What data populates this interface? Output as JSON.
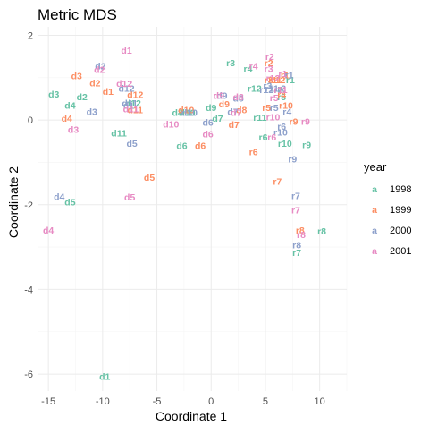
{
  "chart_data": {
    "type": "scatter",
    "title": "Metric MDS",
    "xlabel": "Coordinate 1",
    "ylabel": "Coordinate 2",
    "xlim": [
      -16,
      12.5
    ],
    "ylim": [
      -6.4,
      2.2
    ],
    "xticks": [
      -15,
      -10,
      -5,
      0,
      5,
      10
    ],
    "yticks": [
      -6,
      -4,
      -2,
      0,
      2
    ],
    "grid": true,
    "legend": {
      "title": "year",
      "placement": "right"
    },
    "series": [
      {
        "name": "1998",
        "color": "#66c2a5",
        "points": [
          {
            "label": "d1",
            "x": -9.8,
            "y": -6.05
          },
          {
            "label": "d2",
            "x": -11.9,
            "y": 0.55
          },
          {
            "label": "d3",
            "x": -14.5,
            "y": 0.62
          },
          {
            "label": "d4",
            "x": -13.0,
            "y": 0.35
          },
          {
            "label": "d5",
            "x": -13.0,
            "y": -1.93
          },
          {
            "label": "d6",
            "x": -2.7,
            "y": -0.6
          },
          {
            "label": "d7",
            "x": 0.6,
            "y": 0.05
          },
          {
            "label": "d8",
            "x": -3.1,
            "y": 0.18
          },
          {
            "label": "d9",
            "x": 0.0,
            "y": 0.3
          },
          {
            "label": "d10",
            "x": -2.2,
            "y": 0.18
          },
          {
            "label": "d11",
            "x": -8.5,
            "y": -0.3
          },
          {
            "label": "d12",
            "x": -7.2,
            "y": 0.4
          },
          {
            "label": "r1",
            "x": 7.3,
            "y": 0.95
          },
          {
            "label": "r2",
            "x": 6.2,
            "y": 0.72
          },
          {
            "label": "r3",
            "x": 1.8,
            "y": 1.35
          },
          {
            "label": "r4",
            "x": 3.4,
            "y": 1.22
          },
          {
            "label": "r5",
            "x": 6.5,
            "y": 0.55
          },
          {
            "label": "r6",
            "x": 4.8,
            "y": -0.4
          },
          {
            "label": "r7",
            "x": 7.9,
            "y": -3.13
          },
          {
            "label": "r8",
            "x": 10.2,
            "y": -2.62
          },
          {
            "label": "r9",
            "x": 8.8,
            "y": -0.58
          },
          {
            "label": "r10",
            "x": 6.8,
            "y": -0.55
          },
          {
            "label": "r11",
            "x": 4.5,
            "y": 0.07
          },
          {
            "label": "r12",
            "x": 4.0,
            "y": 0.75
          }
        ]
      },
      {
        "name": "1999",
        "color": "#fc8d62",
        "points": [
          {
            "label": "d1",
            "x": -9.5,
            "y": 0.68
          },
          {
            "label": "d2",
            "x": -10.7,
            "y": 0.88
          },
          {
            "label": "d3",
            "x": -12.4,
            "y": 1.05
          },
          {
            "label": "d4",
            "x": -13.3,
            "y": 0.05
          },
          {
            "label": "d5",
            "x": -5.7,
            "y": -1.35
          },
          {
            "label": "d6",
            "x": -1.0,
            "y": -0.6
          },
          {
            "label": "d7",
            "x": 2.1,
            "y": -0.1
          },
          {
            "label": "d8",
            "x": 2.8,
            "y": 0.25
          },
          {
            "label": "d9",
            "x": 1.2,
            "y": 0.38
          },
          {
            "label": "d10",
            "x": -2.3,
            "y": 0.25
          },
          {
            "label": "d11",
            "x": -7.0,
            "y": 0.25
          },
          {
            "label": "d12",
            "x": -7.0,
            "y": 0.6
          },
          {
            "label": "r1",
            "x": 6.8,
            "y": 1.07
          },
          {
            "label": "r2",
            "x": 5.3,
            "y": 1.35
          },
          {
            "label": "r3",
            "x": 5.3,
            "y": 0.95
          },
          {
            "label": "r4",
            "x": 6.5,
            "y": 0.6
          },
          {
            "label": "r5",
            "x": 5.1,
            "y": 0.3
          },
          {
            "label": "r6",
            "x": 3.9,
            "y": -0.75
          },
          {
            "label": "r7",
            "x": 6.1,
            "y": -1.45
          },
          {
            "label": "r8",
            "x": 8.2,
            "y": -2.6
          },
          {
            "label": "r9",
            "x": 7.6,
            "y": -0.03
          },
          {
            "label": "r10",
            "x": 6.9,
            "y": 0.35
          },
          {
            "label": "r11",
            "x": 5.9,
            "y": 0.95
          },
          {
            "label": "r12",
            "x": 6.2,
            "y": 0.95
          }
        ]
      },
      {
        "name": "2000",
        "color": "#8da0cb",
        "points": [
          {
            "label": "d1",
            "x": -7.6,
            "y": 0.35
          },
          {
            "label": "d2",
            "x": -10.2,
            "y": 1.28
          },
          {
            "label": "d3",
            "x": -11.0,
            "y": 0.2
          },
          {
            "label": "d4",
            "x": -14.0,
            "y": -1.8
          },
          {
            "label": "d5",
            "x": -7.3,
            "y": -0.55
          },
          {
            "label": "d6",
            "x": -0.3,
            "y": -0.05
          },
          {
            "label": "d7",
            "x": 2.0,
            "y": 0.2
          },
          {
            "label": "d8",
            "x": 2.5,
            "y": 0.52
          },
          {
            "label": "d9",
            "x": 1.0,
            "y": 0.58
          },
          {
            "label": "d10",
            "x": -2.0,
            "y": 0.18
          },
          {
            "label": "d11",
            "x": -7.5,
            "y": 0.4
          },
          {
            "label": "d12",
            "x": -7.8,
            "y": 0.75
          },
          {
            "label": "r1",
            "x": 7.2,
            "y": 1.07
          },
          {
            "label": "r2",
            "x": 6.5,
            "y": 0.75
          },
          {
            "label": "r3",
            "x": 5.2,
            "y": 0.82
          },
          {
            "label": "r4",
            "x": 7.0,
            "y": 0.2
          },
          {
            "label": "r5",
            "x": 5.8,
            "y": 0.3
          },
          {
            "label": "r6",
            "x": 6.5,
            "y": -0.15
          },
          {
            "label": "r7",
            "x": 7.8,
            "y": -1.78
          },
          {
            "label": "r8",
            "x": 7.9,
            "y": -2.95
          },
          {
            "label": "r9",
            "x": 7.5,
            "y": -0.92
          },
          {
            "label": "r10",
            "x": 6.4,
            "y": -0.28
          },
          {
            "label": "r11",
            "x": 5.6,
            "y": 0.75
          },
          {
            "label": "r12",
            "x": 5.1,
            "y": 0.72
          }
        ]
      },
      {
        "name": "2001",
        "color": "#e78ac3",
        "points": [
          {
            "label": "d1",
            "x": -7.8,
            "y": 1.65
          },
          {
            "label": "d2",
            "x": -10.3,
            "y": 1.2
          },
          {
            "label": "d3",
            "x": -12.7,
            "y": -0.22
          },
          {
            "label": "d4",
            "x": -15.0,
            "y": -2.6
          },
          {
            "label": "d5",
            "x": -7.5,
            "y": -1.82
          },
          {
            "label": "d6",
            "x": -0.3,
            "y": -0.32
          },
          {
            "label": "d7",
            "x": 2.3,
            "y": 0.18
          },
          {
            "label": "d8",
            "x": 2.5,
            "y": 0.55
          },
          {
            "label": "d9",
            "x": 0.7,
            "y": 0.58
          },
          {
            "label": "d10",
            "x": -3.7,
            "y": -0.09
          },
          {
            "label": "d11",
            "x": -7.4,
            "y": 0.27
          },
          {
            "label": "d12",
            "x": -8.0,
            "y": 0.87
          },
          {
            "label": "r1",
            "x": 6.6,
            "y": 1.1
          },
          {
            "label": "r2",
            "x": 5.4,
            "y": 1.5
          },
          {
            "label": "r3",
            "x": 5.3,
            "y": 1.22
          },
          {
            "label": "r4",
            "x": 3.9,
            "y": 1.28
          },
          {
            "label": "r5",
            "x": 5.8,
            "y": 0.53
          },
          {
            "label": "r6",
            "x": 5.6,
            "y": -0.4
          },
          {
            "label": "r7",
            "x": 7.8,
            "y": -2.12
          },
          {
            "label": "r8",
            "x": 8.3,
            "y": -2.7
          },
          {
            "label": "r9",
            "x": 8.7,
            "y": -0.03
          },
          {
            "label": "r10",
            "x": 5.7,
            "y": 0.08
          },
          {
            "label": "r11",
            "x": 6.4,
            "y": 0.72
          },
          {
            "label": "r12",
            "x": 5.7,
            "y": 1.0
          }
        ]
      }
    ]
  }
}
